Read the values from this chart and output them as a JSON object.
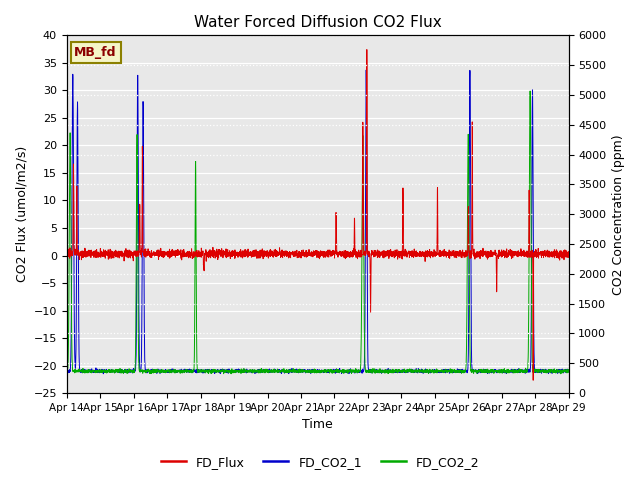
{
  "title": "Water Forced Diffusion CO2 Flux",
  "xlabel": "Time",
  "ylabel_left": "CO2 Flux (umol/m2/s)",
  "ylabel_right": "CO2 Concentration (ppm)",
  "ylim_left": [
    -25,
    40
  ],
  "ylim_right": [
    0,
    6000
  ],
  "yticks_left": [
    -25,
    -20,
    -15,
    -10,
    -5,
    0,
    5,
    10,
    15,
    20,
    25,
    30,
    35,
    40
  ],
  "yticks_right": [
    0,
    500,
    1000,
    1500,
    2000,
    2500,
    3000,
    3500,
    4000,
    4500,
    5000,
    5500,
    6000
  ],
  "label_box_text": "MB_fd",
  "label_box_color": "#f5f5c8",
  "label_box_edgecolor": "#8B8000",
  "legend_entries": [
    "FD_Flux",
    "FD_CO2_1",
    "FD_CO2_2"
  ],
  "line_colors": [
    "#dd0000",
    "#0000cc",
    "#00aa00"
  ],
  "background_color": "#e8e8e8",
  "title_fontsize": 11,
  "axis_fontsize": 9,
  "tick_fontsize": 8
}
